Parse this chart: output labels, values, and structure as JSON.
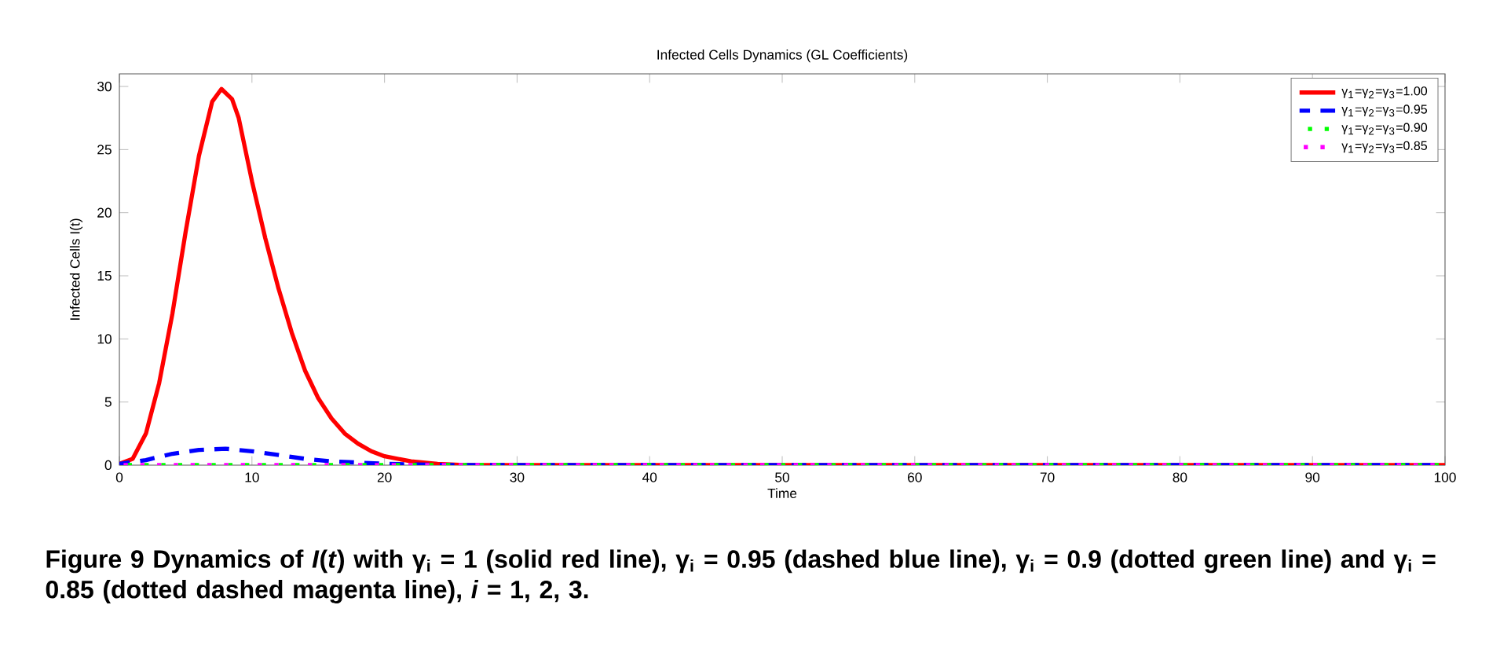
{
  "chart_data": {
    "type": "line",
    "title": "Infected Cells Dynamics (GL Coefficients)",
    "xlabel": "Time",
    "ylabel": "Infected Cells I(t)",
    "xlim": [
      0,
      100
    ],
    "ylim": [
      0,
      31
    ],
    "xticks": [
      0,
      10,
      20,
      30,
      40,
      50,
      60,
      70,
      80,
      90,
      100
    ],
    "yticks": [
      0,
      5,
      10,
      15,
      20,
      25,
      30
    ],
    "legend": "top right",
    "grid": false,
    "series": [
      {
        "name": "γ$_{1}$=γ$_{2}$=γ$_{3}$=1.00",
        "color": "#ff0000",
        "line_style": "solid",
        "x": [
          0,
          1,
          2,
          3,
          4,
          5,
          6,
          7,
          7.7,
          8.5,
          9,
          10,
          11,
          12,
          13,
          14,
          15,
          16,
          17,
          18,
          19,
          20,
          22,
          24,
          26,
          30,
          100
        ],
        "values": [
          0.1,
          0.5,
          2.5,
          6.5,
          12,
          18.5,
          24.5,
          28.8,
          29.8,
          29,
          27.5,
          22.5,
          18,
          14,
          10.5,
          7.5,
          5.3,
          3.7,
          2.5,
          1.7,
          1.1,
          0.7,
          0.3,
          0.1,
          0,
          0,
          0
        ]
      },
      {
        "name": "γ$_{1}$=γ$_{2}$=γ$_{3}$=0.95",
        "color": "#0000ff",
        "line_style": "dashed",
        "x": [
          0,
          2,
          4,
          6,
          8,
          10,
          12,
          14,
          16,
          18,
          20,
          25,
          30,
          100
        ],
        "values": [
          0.1,
          0.4,
          0.9,
          1.2,
          1.3,
          1.1,
          0.8,
          0.5,
          0.3,
          0.2,
          0.1,
          0,
          0,
          0
        ]
      },
      {
        "name": "γ$_{1}$=γ$_{2}$=γ$_{3}$=0.90",
        "color": "#00ff00",
        "line_style": "dotted",
        "x": [
          0,
          10,
          100
        ],
        "values": [
          0,
          0,
          0
        ]
      },
      {
        "name": "γ$_{1}$=γ$_{2}$=γ$_{3}$=0.85",
        "color": "#ff00ff",
        "line_style": "dotted",
        "x": [
          0,
          10,
          100
        ],
        "values": [
          0,
          0,
          0
        ]
      }
    ],
    "annotations": [
      "**Figure 9  Dynamics of *I*(*t*) with γ$_{i}$ = 1 (solid red line), γ$_{i}$ = 0.95 (dashed blue line), γ$_{i}$ = 0.9 (dotted green line) and γ$_{i}$ = 0.85 (dotted dashed magenta line), *i* = 1, 2, 3.**"
    ]
  }
}
